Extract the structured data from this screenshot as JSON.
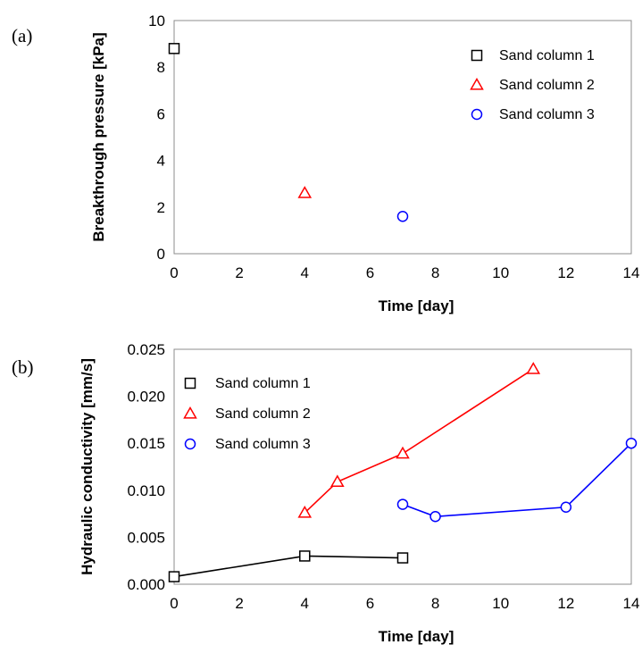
{
  "chart_data": [
    {
      "panel_label": "(a)",
      "type": "scatter",
      "xlabel": "Time [day]",
      "ylabel": "Breakthrough pressure [kPa]",
      "xlim": [
        0,
        14
      ],
      "ylim": [
        0,
        10
      ],
      "xticks": [
        0,
        2,
        4,
        6,
        8,
        10,
        12,
        14
      ],
      "yticks": [
        0,
        2,
        4,
        6,
        8,
        10
      ],
      "legend": "top-right",
      "series": [
        {
          "name": "Sand column 1",
          "marker": "square",
          "color": "#000000",
          "points": [
            [
              0,
              8.8
            ]
          ]
        },
        {
          "name": "Sand column 2",
          "marker": "triangle",
          "color": "#ff0000",
          "points": [
            [
              4,
              2.6
            ]
          ]
        },
        {
          "name": "Sand column 3",
          "marker": "circle",
          "color": "#0000ff",
          "points": [
            [
              7,
              1.6
            ]
          ]
        }
      ]
    },
    {
      "panel_label": "(b)",
      "type": "line",
      "xlabel": "Time [day]",
      "ylabel": "Hydraulic conductivity [mm/s]",
      "xlim": [
        0,
        14
      ],
      "ylim": [
        0,
        0.025
      ],
      "xticks": [
        0,
        2,
        4,
        6,
        8,
        10,
        12,
        14
      ],
      "yticks": [
        "0.000",
        "0.005",
        "0.010",
        "0.015",
        "0.020",
        "0.025"
      ],
      "legend": "top-left",
      "series": [
        {
          "name": "Sand column 1",
          "marker": "square",
          "color": "#000000",
          "points": [
            [
              0,
              0.0008
            ],
            [
              4,
              0.003
            ],
            [
              7,
              0.0028
            ]
          ]
        },
        {
          "name": "Sand column 2",
          "marker": "triangle",
          "color": "#ff0000",
          "points": [
            [
              4,
              0.0076
            ],
            [
              5,
              0.0109
            ],
            [
              7,
              0.0139
            ],
            [
              11,
              0.0229
            ]
          ]
        },
        {
          "name": "Sand column 3",
          "marker": "circle",
          "color": "#0000ff",
          "points": [
            [
              7,
              0.0085
            ],
            [
              8,
              0.0072
            ],
            [
              12,
              0.0082
            ],
            [
              14,
              0.015
            ]
          ]
        }
      ]
    }
  ]
}
